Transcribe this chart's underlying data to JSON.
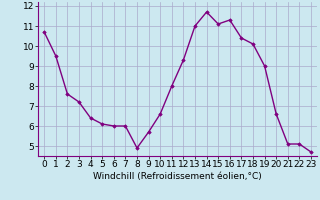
{
  "x": [
    0,
    1,
    2,
    3,
    4,
    5,
    6,
    7,
    8,
    9,
    10,
    11,
    12,
    13,
    14,
    15,
    16,
    17,
    18,
    19,
    20,
    21,
    22,
    23
  ],
  "y": [
    10.7,
    9.5,
    7.6,
    7.2,
    6.4,
    6.1,
    6.0,
    6.0,
    4.9,
    5.7,
    6.6,
    8.0,
    9.3,
    11.0,
    11.7,
    11.1,
    11.3,
    10.4,
    10.1,
    9.0,
    6.6,
    5.1,
    5.1,
    4.7
  ],
  "line_color": "#800080",
  "marker": "D",
  "marker_size": 1.8,
  "bg_color": "#cce8f0",
  "grid_color": "#aaaacc",
  "xlabel": "Windchill (Refroidissement éolien,°C)",
  "xlim": [
    -0.5,
    23.5
  ],
  "ylim": [
    4.5,
    12.2
  ],
  "yticks": [
    5,
    6,
    7,
    8,
    9,
    10,
    11,
    12
  ],
  "xticks": [
    0,
    1,
    2,
    3,
    4,
    5,
    6,
    7,
    8,
    9,
    10,
    11,
    12,
    13,
    14,
    15,
    16,
    17,
    18,
    19,
    20,
    21,
    22,
    23
  ],
  "xlabel_fontsize": 6.5,
  "tick_fontsize": 6.5,
  "line_width": 1.0,
  "spine_color": "#800080"
}
